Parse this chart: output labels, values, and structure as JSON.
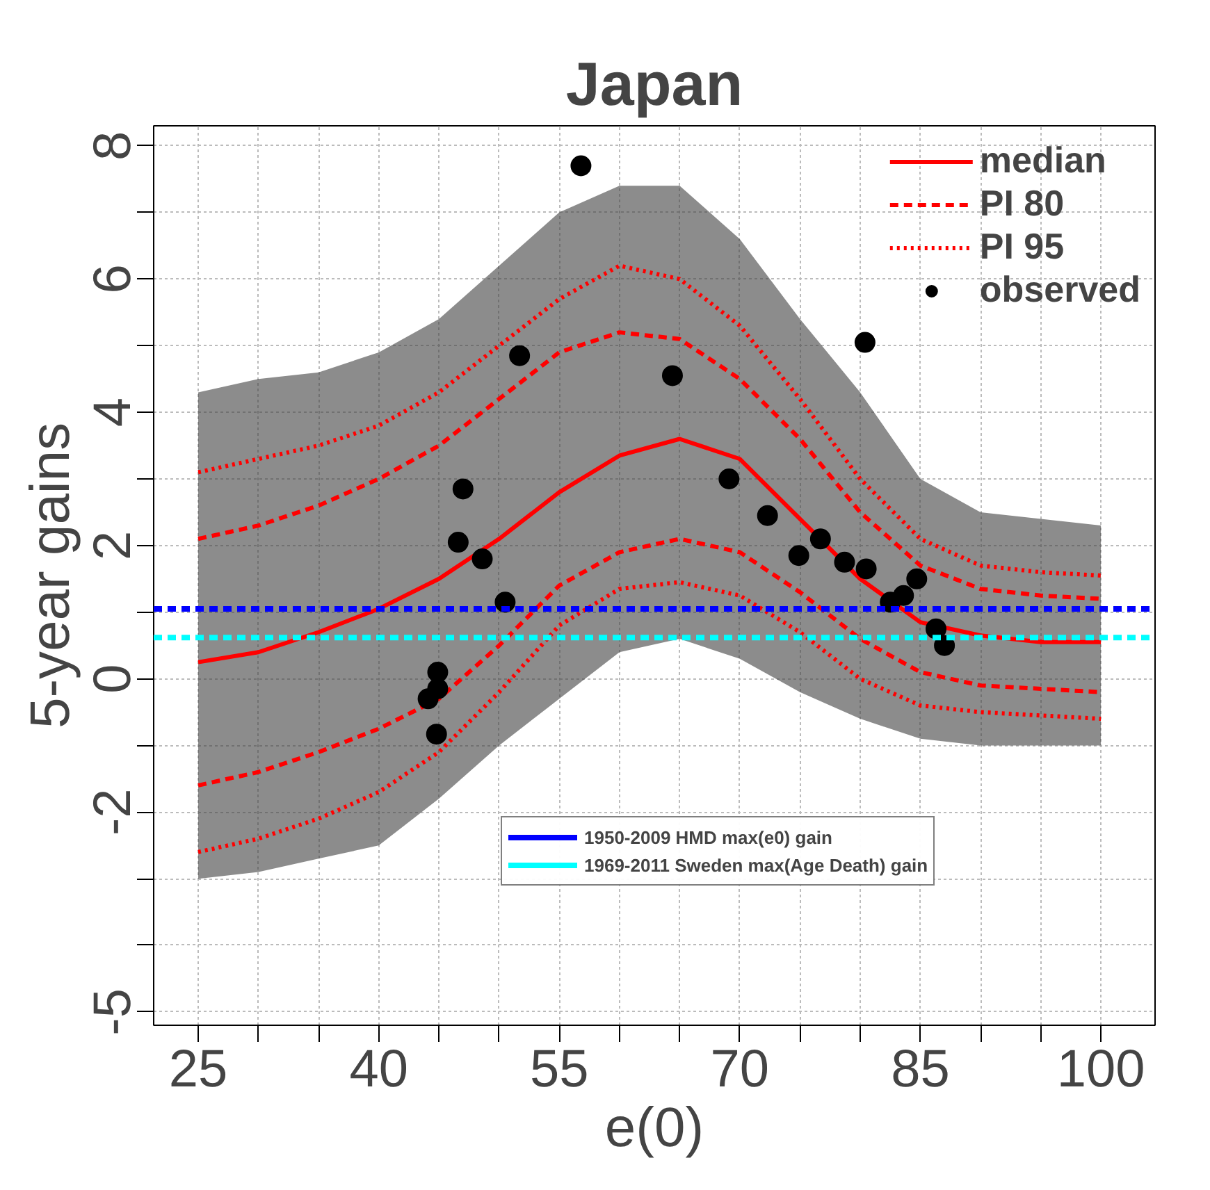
{
  "chart_data": {
    "type": "line",
    "title": "Japan",
    "xlabel": "e(0)",
    "ylabel": "5-year gains",
    "xlim": [
      21.3,
      104.5
    ],
    "ylim": [
      -5.2,
      8.3
    ],
    "xticks": [
      25,
      {
        "value": 30,
        "label": null
      },
      {
        "value": 35,
        "label": null
      },
      40,
      {
        "value": 45,
        "label": null
      },
      {
        "value": 50,
        "label": null
      },
      55,
      {
        "value": 60,
        "label": null
      },
      {
        "value": 65,
        "label": null
      },
      70,
      {
        "value": 75,
        "label": null
      },
      {
        "value": 80,
        "label": null
      },
      85,
      {
        "value": 90,
        "label": null
      },
      {
        "value": 95,
        "label": null
      },
      100
    ],
    "yticks": [
      -5,
      {
        "value": -4,
        "label": null
      },
      {
        "value": -3,
        "label": null
      },
      -2,
      {
        "value": -1,
        "label": null
      },
      0,
      {
        "value": 1,
        "label": null
      },
      2,
      {
        "value": 3,
        "label": null
      },
      4,
      {
        "value": 5,
        "label": null
      },
      6,
      {
        "value": 7,
        "label": null
      },
      8
    ],
    "grid": true,
    "legend": "top right",
    "x": [
      25,
      30,
      35,
      40,
      45,
      50,
      55,
      60,
      65,
      70,
      75,
      80,
      85,
      90,
      95,
      100
    ],
    "series": [
      {
        "name": "median",
        "color": "#ff0000",
        "lower": [
          -3.0,
          -2.9,
          -2.7,
          -2.5,
          -1.8,
          -1.0,
          -0.3,
          0.4,
          0.6,
          0.3,
          -0.2,
          -0.6,
          -0.9,
          -1.0,
          -1.0,
          -1.0
        ],
        "upper": [
          4.3,
          4.5,
          4.6,
          4.9,
          5.4,
          6.2,
          7.0,
          7.4,
          7.4,
          6.6,
          5.4,
          4.3,
          3.0,
          2.5,
          2.4,
          2.3
        ],
        "line_style": "solid",
        "values": [
          0.25,
          0.4,
          0.7,
          1.05,
          1.5,
          2.1,
          2.8,
          3.35,
          3.6,
          3.3,
          2.4,
          1.5,
          0.85,
          0.65,
          0.55,
          0.55
        ]
      },
      {
        "name": "PI 80",
        "color": "#ff0000",
        "line_style": "dashed",
        "values": [
          2.1,
          2.3,
          2.6,
          3.0,
          3.5,
          4.2,
          4.9,
          5.2,
          5.1,
          4.5,
          3.6,
          2.5,
          1.7,
          1.35,
          1.25,
          1.2
        ]
      },
      {
        "color": "#ff0000",
        "line_style": "dashed",
        "values": [
          -1.6,
          -1.4,
          -1.1,
          -0.75,
          -0.3,
          0.5,
          1.4,
          1.9,
          2.1,
          1.9,
          1.3,
          0.6,
          0.1,
          -0.1,
          -0.15,
          -0.2
        ]
      },
      {
        "name": "PI 95",
        "color": "#ff0000",
        "line_style": "dotted",
        "values": [
          3.1,
          3.3,
          3.5,
          3.8,
          4.3,
          5.0,
          5.7,
          6.2,
          6.0,
          5.3,
          4.2,
          3.0,
          2.1,
          1.7,
          1.6,
          1.55
        ]
      },
      {
        "color": "#ff0000",
        "line_style": "dotted",
        "values": [
          -2.6,
          -2.4,
          -2.1,
          -1.7,
          -1.1,
          -0.2,
          0.8,
          1.35,
          1.45,
          1.25,
          0.7,
          0.0,
          -0.4,
          -0.5,
          -0.55,
          -0.6
        ]
      },
      {
        "name": "observed",
        "type": "scatter",
        "marker": "circle",
        "color": "#000000",
        "x": [
          47.0,
          44.1,
          44.9,
          44.9,
          44.8,
          46.6,
          48.6,
          50.5,
          51.7,
          56.8,
          64.4,
          69.1,
          72.3,
          74.9,
          76.7,
          78.7,
          80.4,
          80.5,
          82.5,
          83.6,
          84.7,
          86.3,
          87.0
        ],
        "values": [
          2.85,
          -0.3,
          0.1,
          -0.15,
          -0.83,
          2.05,
          1.8,
          1.15,
          4.85,
          7.7,
          4.55,
          3.0,
          2.45,
          1.85,
          2.1,
          1.75,
          5.05,
          1.65,
          1.15,
          1.25,
          1.5,
          0.75,
          0.5
        ]
      }
    ],
    "ref_lines": [
      {
        "axis": "y",
        "value": 1.05,
        "label": "1950-2009 HMD max(e0) gain",
        "color": "#0000ff",
        "line_style": "dashed"
      },
      {
        "axis": "y",
        "value": 0.62,
        "label": "1969-2011 Sweden max(Age Death) gain",
        "color": "#00ffff",
        "line_style": "dashed"
      }
    ]
  }
}
